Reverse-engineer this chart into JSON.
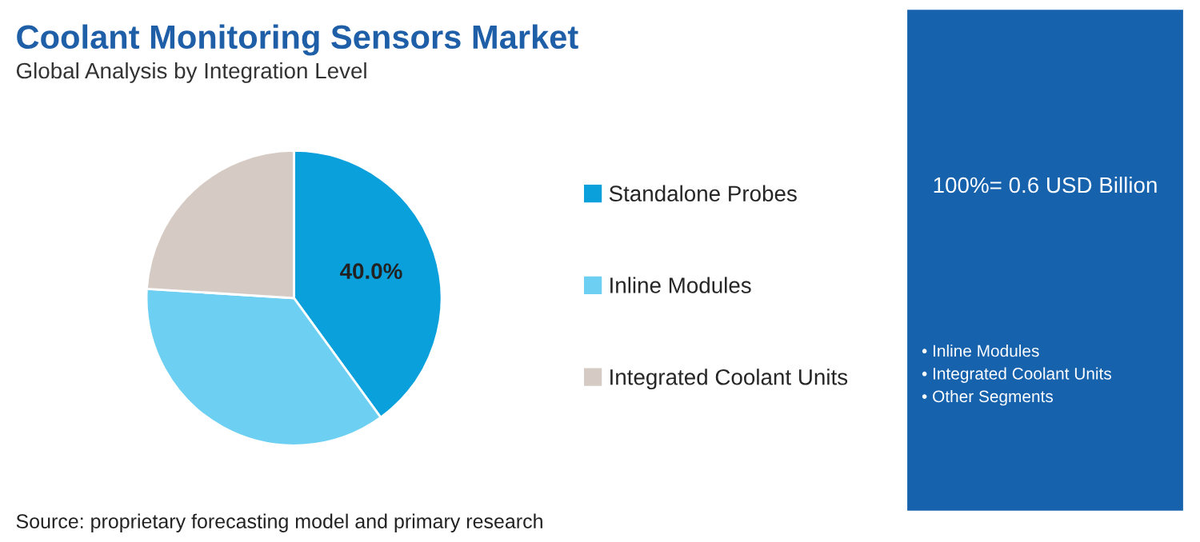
{
  "chart_data": {
    "type": "pie",
    "title": "Coolant Monitoring Sensors Market",
    "subtitle": "Global Analysis by Integration Level",
    "categories": [
      "Standalone Probes",
      "Inline Modules",
      "Integrated Coolant Units"
    ],
    "values": [
      40,
      36,
      24
    ],
    "colors": [
      "#0aa0dc",
      "#6dcff2",
      "#d6cbc4"
    ],
    "value_labels": [
      "40.0%",
      null,
      null
    ],
    "legend": "right",
    "annotations": [
      "100%= 0.6 USD Billion",
      "• Inline Modules",
      "• Integrated Coolant Units",
      "• Other Segments",
      "Source: proprietary forecasting model and primary research"
    ]
  }
}
